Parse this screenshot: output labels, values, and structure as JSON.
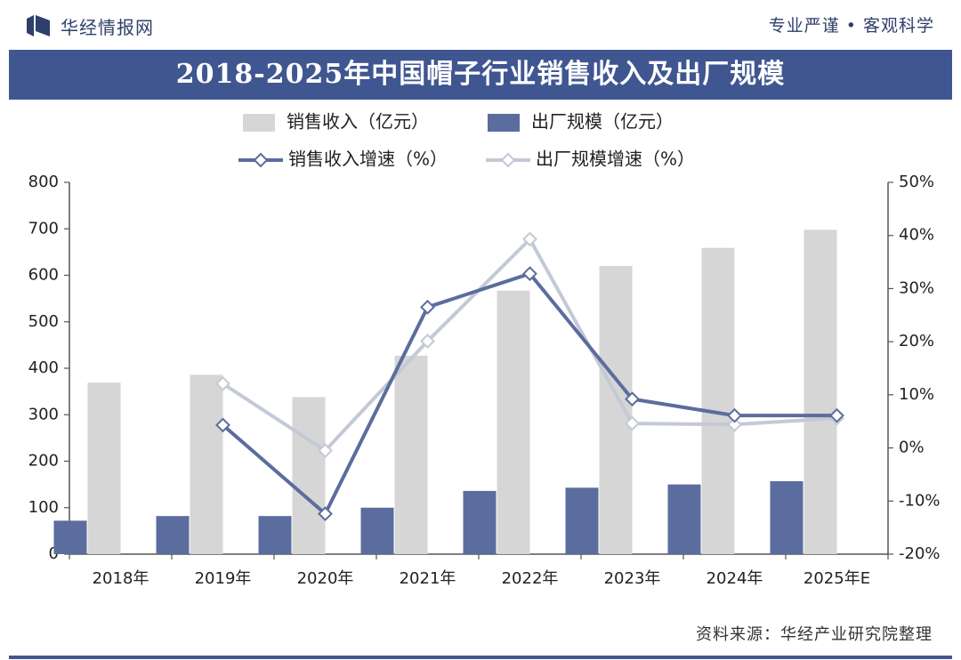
{
  "header": {
    "brand": "华经情报网",
    "slogan": "专业严谨 • 客观科学"
  },
  "title": "2018-2025年中国帽子行业销售收入及出厂规模",
  "source": "资料来源：华经产业研究院整理",
  "colors": {
    "title_bg": "#3f5690",
    "revenue_bar": "#d6d6d6",
    "factory_bar": "#5b6d9e",
    "revenue_growth_line": "#5b6d9e",
    "factory_growth_line": "#c4c9d6"
  },
  "chart_data": {
    "type": "bar",
    "categories": [
      "2018年",
      "2019年",
      "2020年",
      "2021年",
      "2022年",
      "2023年",
      "2024年",
      "2025年E"
    ],
    "series": [
      {
        "name": "销售收入（亿元）",
        "kind": "bar",
        "axis": "left",
        "values": [
          369,
          386,
          338,
          427,
          567,
          620,
          659,
          698
        ]
      },
      {
        "name": "出厂规模（亿元）",
        "kind": "bar",
        "axis": "left",
        "values": [
          72,
          82,
          82,
          100,
          136,
          143,
          150,
          157
        ]
      },
      {
        "name": "销售收入增速（%）",
        "kind": "line",
        "axis": "right",
        "values": [
          null,
          4.3,
          -12.4,
          26.5,
          32.8,
          9.2,
          6.1,
          6.1
        ]
      },
      {
        "name": "出厂规模增速（%）",
        "kind": "line",
        "axis": "right",
        "values": [
          null,
          12.1,
          -0.5,
          20.1,
          39.3,
          4.6,
          4.4,
          5.6
        ]
      }
    ],
    "y_left": {
      "min": 0,
      "max": 800,
      "ticks": [
        "0",
        "100",
        "200",
        "300",
        "400",
        "500",
        "600",
        "700",
        "800"
      ]
    },
    "y_right": {
      "min": -20,
      "max": 50,
      "ticks": [
        "-20%",
        "-10%",
        "0%",
        "10%",
        "20%",
        "30%",
        "40%",
        "50%"
      ]
    },
    "legend_position": "top-center",
    "grid": false
  }
}
